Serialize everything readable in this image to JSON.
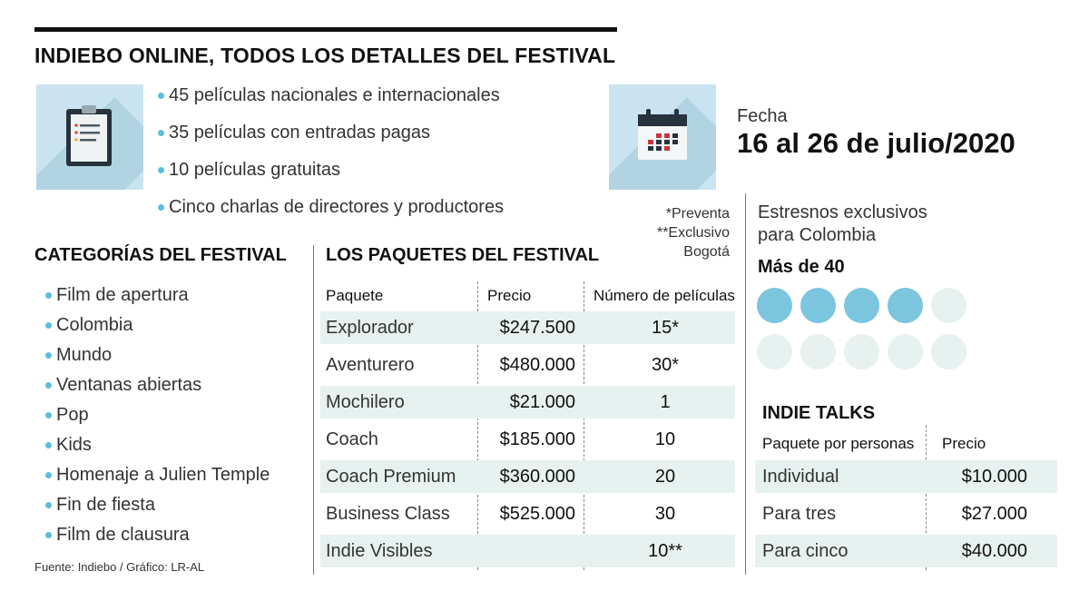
{
  "title": "INDIEBO ONLINE, TODOS LOS DETALLES DEL FESTIVAL",
  "highlights": [
    "45 películas nacionales e internacionales",
    "35 películas con entradas pagas",
    "10 películas gratuitas",
    "Cinco charlas de directores y productores"
  ],
  "fecha": {
    "label": "Fecha",
    "value": "16 al 26 de julio/2020"
  },
  "notes": {
    "line1": "*Preventa",
    "line2": "**Exclusivo",
    "line3": "Bogotá"
  },
  "estrenos": {
    "line1": "Estresnos exclusivos",
    "line2": "para Colombia",
    "count": "Más de 40",
    "dots_filled": 4,
    "dots_total": 10
  },
  "categorias": {
    "title": "CATEGORÍAS DEL FESTIVAL",
    "items": [
      "Film de apertura",
      "Colombia",
      "Mundo",
      "Ventanas abiertas",
      "Pop",
      "Kids",
      "Homenaje a Julien Temple",
      "Fin de fiesta",
      "Film de clausura"
    ]
  },
  "paquetes": {
    "title": "LOS PAQUETES DEL FESTIVAL",
    "headers": [
      "Paquete",
      "Precio",
      "Número de películas"
    ],
    "rows": [
      [
        "Explorador",
        "$247.500",
        "15*"
      ],
      [
        "Aventurero",
        "$480.000",
        "30*"
      ],
      [
        "Mochilero",
        "$21.000",
        "1"
      ],
      [
        "Coach",
        "$185.000",
        "10"
      ],
      [
        "Coach Premium",
        "$360.000",
        "20"
      ],
      [
        "Business Class",
        "$525.000",
        "30"
      ],
      [
        "Indie Visibles",
        "",
        "10**"
      ]
    ]
  },
  "talks": {
    "title": "INDIE TALKS",
    "headers": [
      "Paquete por personas",
      "Precio"
    ],
    "rows": [
      [
        "Individual",
        "$10.000"
      ],
      [
        "Para tres",
        "$27.000"
      ],
      [
        "Para cinco",
        "$40.000"
      ]
    ]
  },
  "source": "Fuente: Indiebo / Gráfico: LR-AL",
  "colors": {
    "accent": "#5bbedc",
    "dot_on": "#7cc5df",
    "dot_off": "#e7f1ef",
    "icon_bg": "#c9e4f0",
    "row_shade": "#e7f1ef"
  },
  "icons": {
    "highlights": "clipboard-icon",
    "fecha": "calendar-icon"
  }
}
